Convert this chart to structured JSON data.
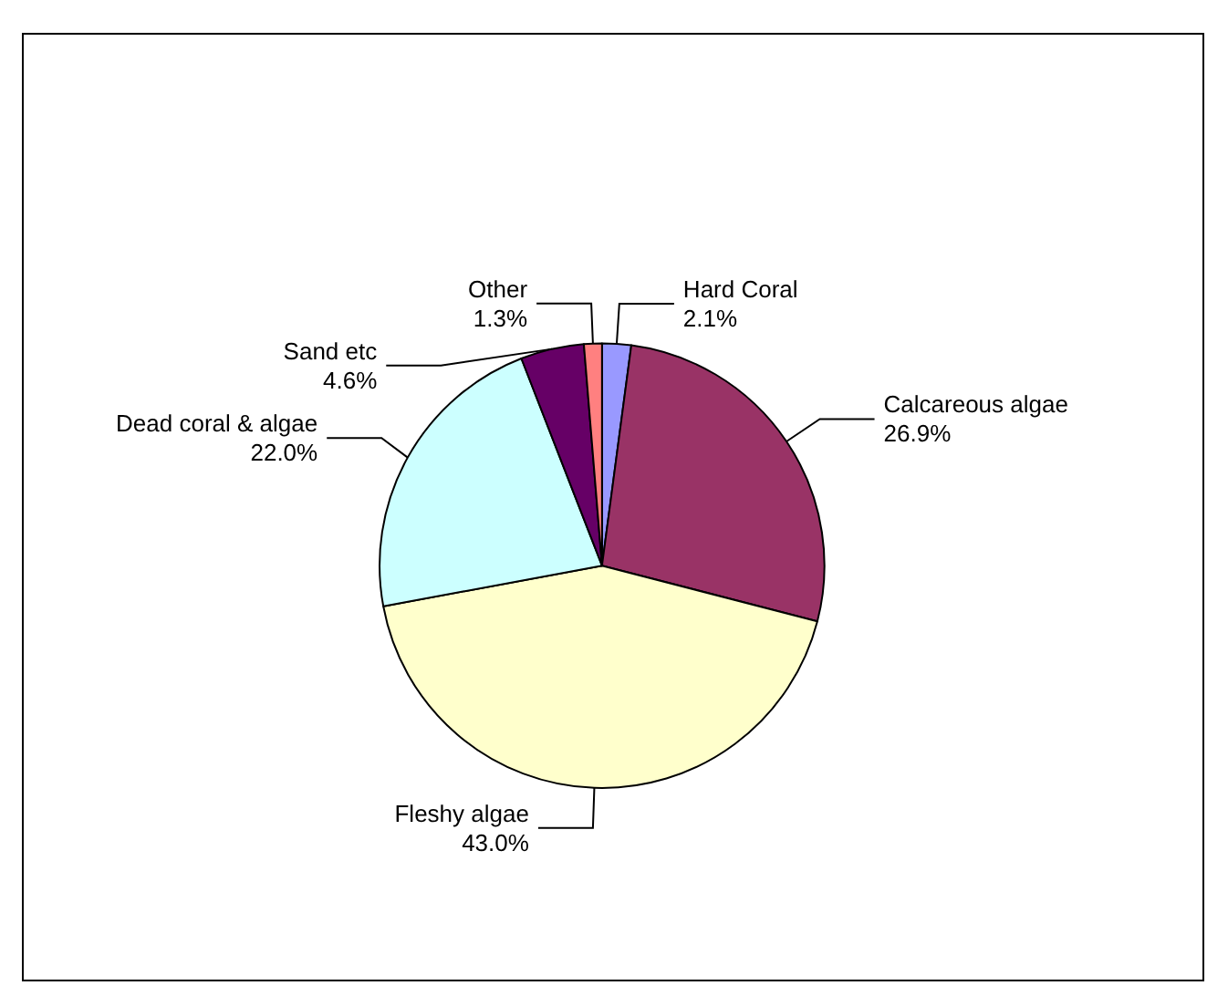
{
  "chart_data": {
    "type": "pie",
    "categories": [
      "Hard Coral",
      "Calcareous algae",
      "Fleshy algae",
      "Dead coral & algae",
      "Sand etc",
      "Other"
    ],
    "values": [
      2.1,
      26.9,
      43.0,
      22.0,
      4.6,
      1.3
    ],
    "value_labels": [
      "2.1%",
      "26.9%",
      "43.0%",
      "22.0%",
      "4.6%",
      "1.3%"
    ],
    "colors": [
      "#9999ff",
      "#993366",
      "#ffffcc",
      "#ccffff",
      "#660066",
      "#ff8080"
    ],
    "legend": false
  }
}
